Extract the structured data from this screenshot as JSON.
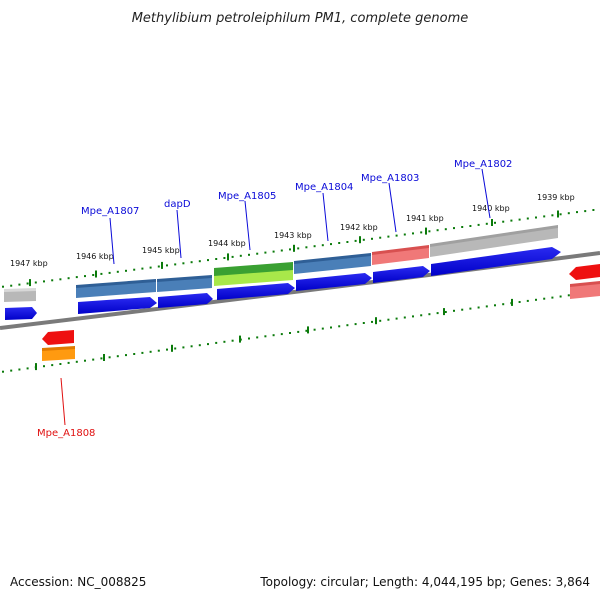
{
  "title": "Methylibium petroleiphilum PM1, complete genome",
  "footer": {
    "accession": "Accession: NC_008825",
    "summary": "Topology: circular; Length: 4,044,195 bp; Genes: 3,864"
  },
  "ruler_labels": [
    "1947 kbp",
    "1946 kbp",
    "1945 kbp",
    "1944 kbp",
    "1943 kbp",
    "1942 kbp",
    "1941 kbp",
    "1940 kbp",
    "1939 kbp"
  ],
  "gene_labels": [
    "Mpe_A1807",
    "dapD",
    "Mpe_A1805",
    "Mpe_A1804",
    "Mpe_A1803",
    "Mpe_A1802",
    "Mpe_A1808"
  ],
  "colors": {
    "cds_arrow": "#0a0ae6",
    "steelblue_band": "#4a7fb8",
    "green_band": "#3aa032",
    "lime_band": "#a8e84a",
    "pink_band": "#f07878",
    "gray_band": "#b8b8b8",
    "red_feature": "#ee1010",
    "orange_feature": "#ff9a10",
    "tick_green": "#0a7a0a",
    "backbone": "#7a7a7a"
  }
}
